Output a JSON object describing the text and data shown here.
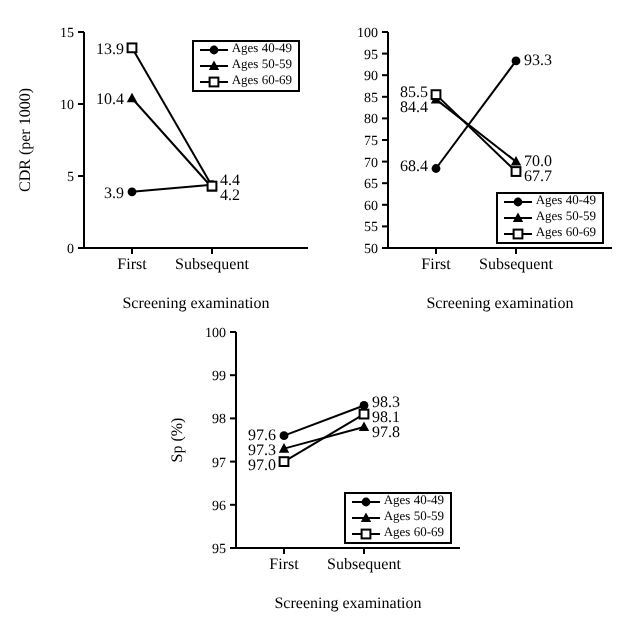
{
  "chart_data": [
    {
      "type": "line",
      "ylabel": "CDR (per 1000)",
      "xlabel": "Screening examination",
      "categories": [
        "First",
        "Subsequent"
      ],
      "ylim": [
        0,
        15
      ],
      "yticks": [
        0,
        5,
        10,
        15
      ],
      "legend": "top right",
      "series": [
        {
          "name": "Ages 40-49",
          "color": "#000000",
          "marker": "circle",
          "values": [
            3.9,
            4.4
          ],
          "value_labels": [
            "3.9",
            "4.4"
          ]
        },
        {
          "name": "Ages 50-59",
          "color": "#000000",
          "marker": "triangle",
          "values": [
            10.4,
            4.2
          ],
          "value_labels": [
            "10.4",
            "4.2"
          ]
        },
        {
          "name": "Ages 60-69",
          "color": "#000000",
          "marker": "square",
          "values": [
            13.9,
            4.3
          ],
          "value_labels": [
            "13.9",
            null
          ]
        }
      ]
    },
    {
      "type": "line",
      "xlabel": "Screening examination",
      "categories": [
        "First",
        "Subsequent"
      ],
      "ylim": [
        50,
        100
      ],
      "yticks": [
        50,
        55,
        60,
        65,
        70,
        75,
        80,
        85,
        90,
        95,
        100
      ],
      "legend": "bottom right",
      "series": [
        {
          "name": "Ages 40-49",
          "color": "#000000",
          "marker": "circle",
          "values": [
            68.4,
            93.3
          ],
          "value_labels": [
            "68.4",
            "93.3"
          ]
        },
        {
          "name": "Ages 50-59",
          "color": "#000000",
          "marker": "triangle",
          "values": [
            84.4,
            70.0
          ],
          "value_labels": [
            "84.4",
            "70.0"
          ]
        },
        {
          "name": "Ages 60-69",
          "color": "#000000",
          "marker": "square",
          "values": [
            85.5,
            67.7
          ],
          "value_labels": [
            "85.5",
            "67.7"
          ]
        }
      ]
    },
    {
      "type": "line",
      "ylabel": "Sp (%)",
      "xlabel": "Screening examination",
      "categories": [
        "First",
        "Subsequent"
      ],
      "ylim": [
        95,
        100
      ],
      "yticks": [
        95,
        96,
        97,
        98,
        99,
        100
      ],
      "legend": "bottom right",
      "series": [
        {
          "name": "Ages 40-49",
          "color": "#000000",
          "marker": "circle",
          "values": [
            97.6,
            98.3
          ],
          "value_labels": [
            "97.6",
            "98.3"
          ]
        },
        {
          "name": "Ages 50-59",
          "color": "#000000",
          "marker": "triangle",
          "values": [
            97.3,
            97.8
          ],
          "value_labels": [
            "97.3",
            "97.8"
          ]
        },
        {
          "name": "Ages 60-69",
          "color": "#000000",
          "marker": "square",
          "values": [
            97.0,
            98.1
          ],
          "value_labels": [
            "97.0",
            "98.1"
          ]
        }
      ]
    }
  ]
}
